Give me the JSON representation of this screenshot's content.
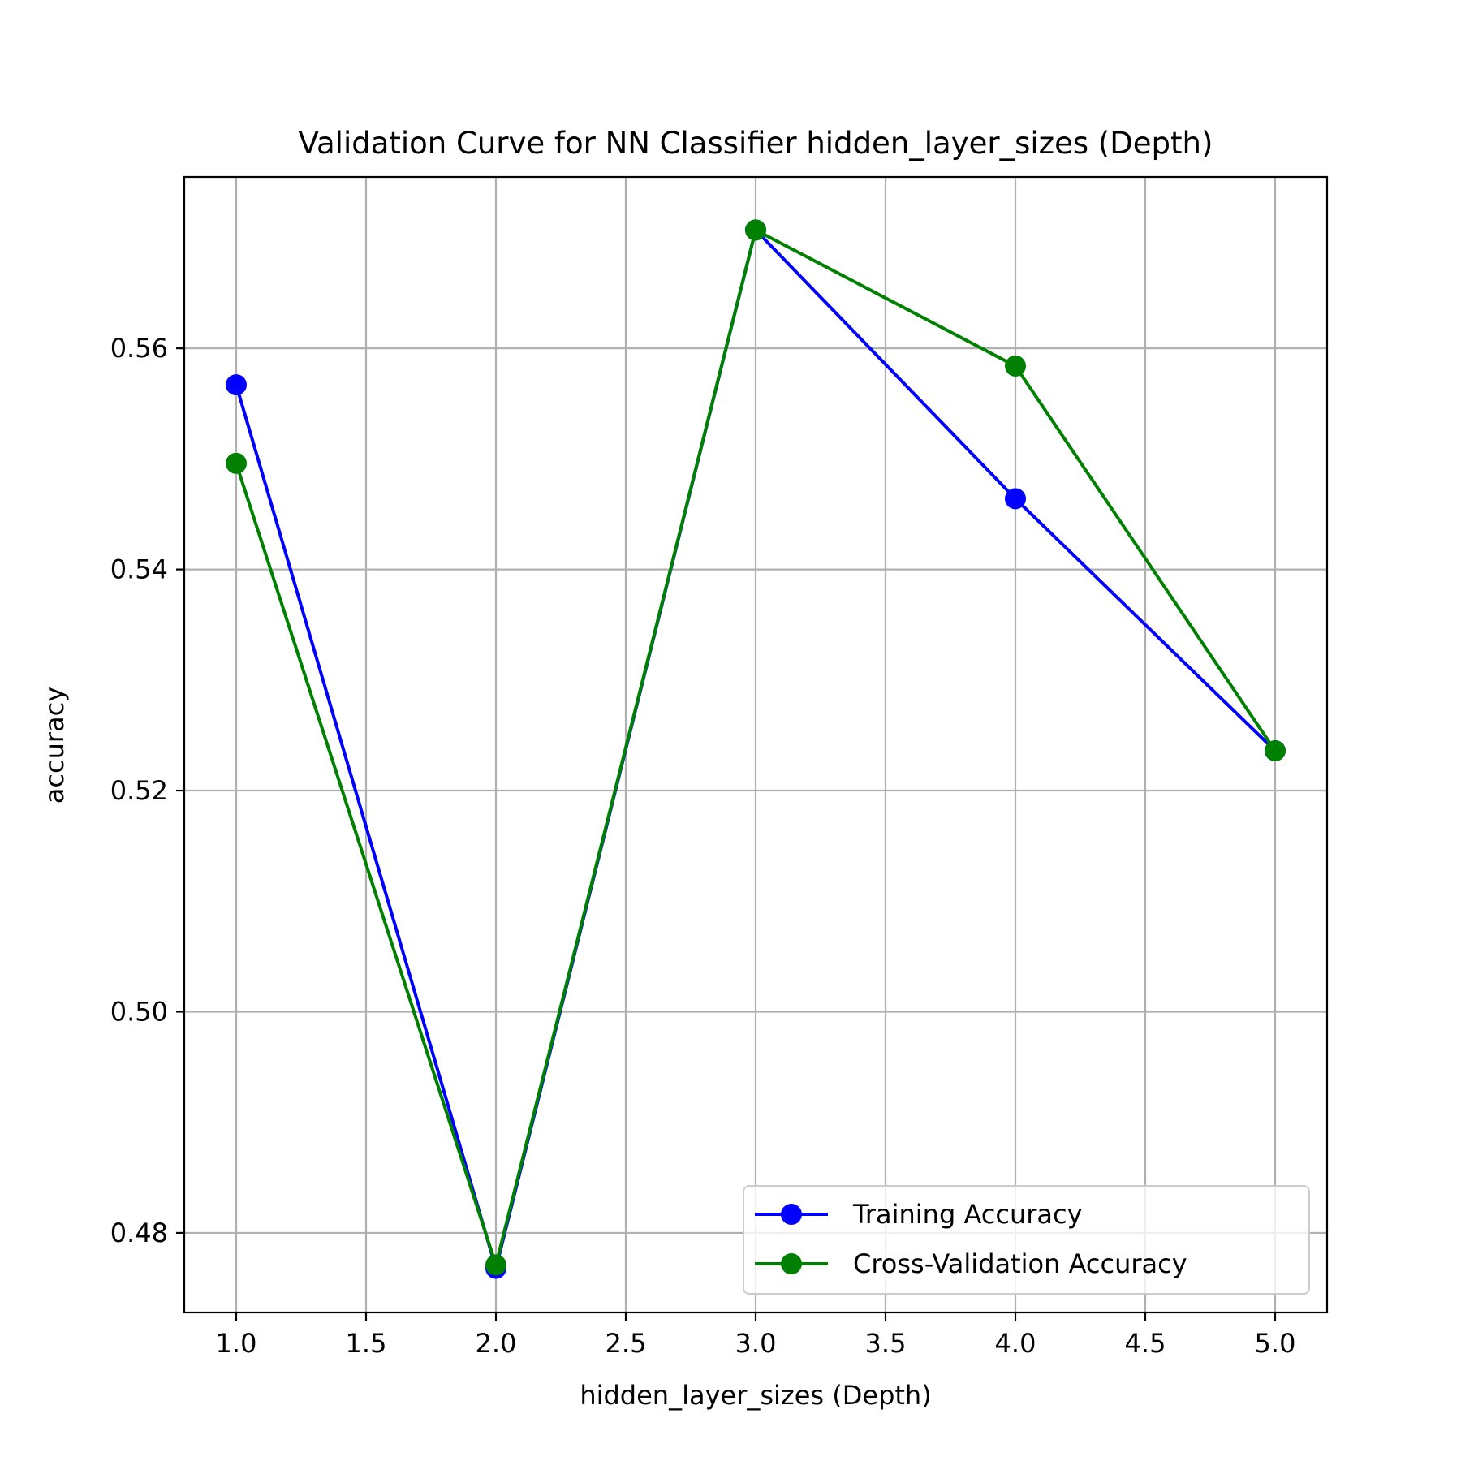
{
  "chart_data": {
    "type": "line",
    "title": "Validation Curve for NN Classifier hidden_layer_sizes (Depth)",
    "xlabel": "hidden_layer_sizes (Depth)",
    "ylabel": "accuracy",
    "xlim": [
      0.8,
      5.2
    ],
    "ylim": [
      0.4728,
      0.5755
    ],
    "x": [
      1,
      2,
      3,
      4,
      5
    ],
    "xticks": [
      1.0,
      1.5,
      2.0,
      2.5,
      3.0,
      3.5,
      4.0,
      4.5,
      5.0
    ],
    "xtick_labels": [
      "1.0",
      "1.5",
      "2.0",
      "2.5",
      "3.0",
      "3.5",
      "4.0",
      "4.5",
      "5.0"
    ],
    "yticks": [
      0.48,
      0.5,
      0.52,
      0.54,
      0.56
    ],
    "ytick_labels": [
      "0.48",
      "0.50",
      "0.52",
      "0.54",
      "0.56"
    ],
    "grid": true,
    "legend_position": "lower-right",
    "series": [
      {
        "name": "Training Accuracy",
        "color": "#0000ff",
        "marker": "circle",
        "values": [
          0.5567,
          0.4768,
          0.5707,
          0.5464,
          0.5236
        ]
      },
      {
        "name": "Cross-Validation Accuracy",
        "color": "#008000",
        "marker": "circle",
        "values": [
          0.5496,
          0.4771,
          0.5707,
          0.5584,
          0.5236
        ]
      }
    ]
  }
}
